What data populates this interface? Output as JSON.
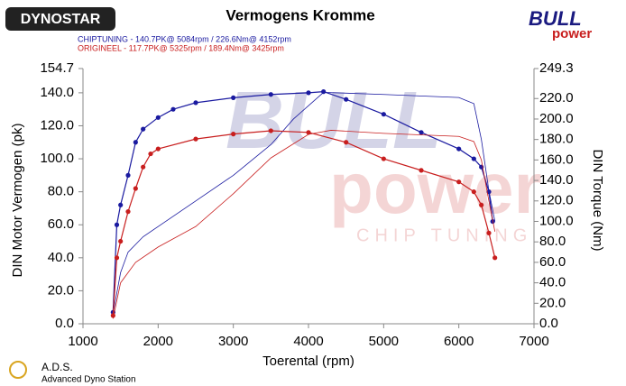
{
  "chart_data": {
    "type": "line",
    "title": "Vermogens Kromme",
    "xlabel": "Toerental (rpm)",
    "ylabel": "DIN Motor Vermogen (pk)",
    "y2label": "DIN Torque (Nm)",
    "xlim": [
      1000,
      7000
    ],
    "xticks": [
      1000,
      2000,
      3000,
      4000,
      5000,
      6000,
      7000
    ],
    "ylim": [
      0,
      154.7
    ],
    "yticks": [
      {
        "value": 0,
        "label": "0.0"
      },
      {
        "value": 20,
        "label": "20.0"
      },
      {
        "value": 40,
        "label": "40.0"
      },
      {
        "value": 60,
        "label": "60.0"
      },
      {
        "value": 80,
        "label": "80.0"
      },
      {
        "value": 100,
        "label": "100.0"
      },
      {
        "value": 120,
        "label": "120.0"
      },
      {
        "value": 140,
        "label": "140.0"
      },
      {
        "value": 154.7,
        "label": "154.7"
      }
    ],
    "y2lim": [
      0,
      249.3
    ],
    "y2ticks": [
      {
        "value": 0,
        "label": "0.0"
      },
      {
        "value": 20,
        "label": "20.0"
      },
      {
        "value": 40,
        "label": "40.0"
      },
      {
        "value": 60,
        "label": "60.0"
      },
      {
        "value": 80,
        "label": "80.0"
      },
      {
        "value": 100,
        "label": "100.0"
      },
      {
        "value": 120,
        "label": "120.0"
      },
      {
        "value": 140,
        "label": "140.0"
      },
      {
        "value": 160,
        "label": "160.0"
      },
      {
        "value": 180,
        "label": "180.0"
      },
      {
        "value": 200,
        "label": "200.0"
      },
      {
        "value": 220,
        "label": "220.0"
      },
      {
        "value": 249.3,
        "label": "249.3"
      }
    ],
    "grid": false,
    "series": [
      {
        "name": "CHIPTUNING  - 140.7PK@ 5084rpm / 226.6Nm@ 4152rpm",
        "color": "#1a1aa0",
        "markers": true,
        "x": [
          1400,
          1450,
          1500,
          1600,
          1700,
          1800,
          2000,
          2200,
          2500,
          3000,
          3500,
          4000,
          4200,
          4500,
          5000,
          5500,
          6000,
          6200,
          6300,
          6400,
          6450
        ],
        "values": [
          7,
          60,
          72,
          90,
          110,
          118,
          125,
          130,
          134,
          137,
          139,
          140,
          140.7,
          136,
          127,
          116,
          106,
          100,
          95,
          80,
          62
        ]
      },
      {
        "color": "#1a1aa0",
        "axis": "y2",
        "markers": false,
        "x": [
          1400,
          1500,
          1600,
          1800,
          2000,
          2500,
          3000,
          3500,
          3800,
          4200,
          5000,
          6000,
          6200,
          6300,
          6400,
          6480
        ],
        "values": [
          10,
          50,
          70,
          85,
          95,
          120,
          145,
          175,
          200,
          226,
          224,
          221,
          215,
          180,
          130,
          100
        ]
      },
      {
        "name": "ORIGINEEL  - 117.7PK@ 5325rpm / 189.4Nm@ 3425rpm",
        "color": "#c81e1e",
        "markers": true,
        "x": [
          1400,
          1450,
          1500,
          1600,
          1700,
          1800,
          1900,
          2000,
          2500,
          3000,
          3500,
          4000,
          4500,
          5000,
          5500,
          6000,
          6200,
          6300,
          6400,
          6480
        ],
        "values": [
          5,
          40,
          50,
          68,
          82,
          95,
          103,
          106,
          112,
          115,
          117,
          116,
          110,
          100,
          93,
          86,
          80,
          72,
          55,
          40
        ]
      },
      {
        "color": "#c81e1e",
        "axis": "y2",
        "markers": false,
        "x": [
          1400,
          1500,
          1700,
          2000,
          2500,
          3000,
          3500,
          4000,
          4300,
          5000,
          6000,
          6200,
          6300,
          6400,
          6480
        ],
        "values": [
          5,
          40,
          60,
          75,
          95,
          127,
          162,
          185,
          189,
          186,
          183,
          178,
          160,
          120,
          90
        ]
      }
    ]
  },
  "logos": {
    "dynostar": "DYNOSTAR",
    "bull": "BULL",
    "power": "power",
    "chip_tuning": "CHIP TUNING",
    "ads": "A.D.S.",
    "ads_full": "Advanced Dyno Station"
  }
}
